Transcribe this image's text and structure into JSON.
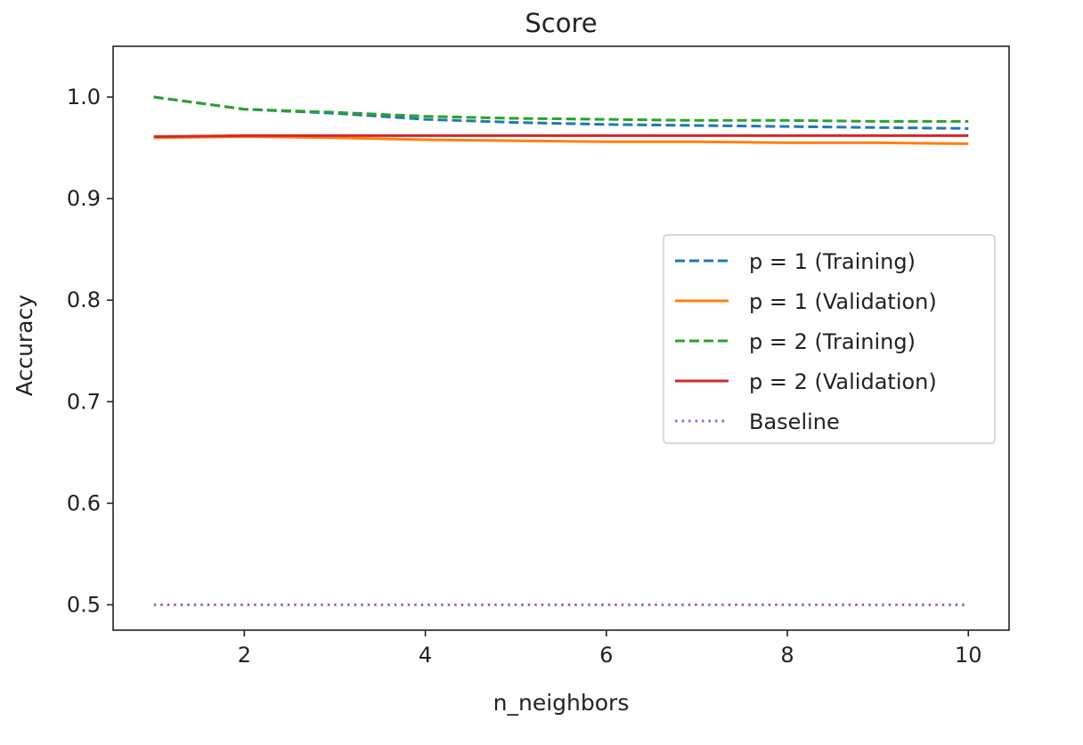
{
  "chart_data": {
    "type": "line",
    "title": "Score",
    "xlabel": "n_neighbors",
    "ylabel": "Accuracy",
    "xlim": [
      0.55,
      10.45
    ],
    "ylim": [
      0.475,
      1.05
    ],
    "xticks": [
      2,
      4,
      6,
      8,
      10
    ],
    "xtick_labels": [
      "2",
      "4",
      "6",
      "8",
      "10"
    ],
    "yticks": [
      0.5,
      0.6,
      0.7,
      0.8,
      0.9,
      1.0
    ],
    "ytick_labels": [
      "0.5",
      "0.6",
      "0.7",
      "0.8",
      "0.9",
      "1.0"
    ],
    "grid": false,
    "legend_position": "center-right",
    "x": [
      1,
      2,
      3,
      4,
      5,
      6,
      7,
      8,
      9,
      10
    ],
    "series": [
      {
        "name": "p = 1 (Training)",
        "values": [
          1.0,
          0.988,
          0.984,
          0.978,
          0.975,
          0.973,
          0.972,
          0.971,
          0.97,
          0.969
        ],
        "color": "#1f77b4",
        "style": "dashed"
      },
      {
        "name": "p = 1 (Validation)",
        "values": [
          0.96,
          0.961,
          0.96,
          0.958,
          0.957,
          0.956,
          0.956,
          0.955,
          0.955,
          0.954
        ],
        "color": "#ff7f0e",
        "style": "solid"
      },
      {
        "name": "p = 2 (Training)",
        "values": [
          1.0,
          0.988,
          0.985,
          0.981,
          0.979,
          0.978,
          0.977,
          0.977,
          0.976,
          0.976
        ],
        "color": "#2ca02c",
        "style": "dashed"
      },
      {
        "name": "p = 2 (Validation)",
        "values": [
          0.961,
          0.962,
          0.962,
          0.962,
          0.962,
          0.962,
          0.962,
          0.962,
          0.962,
          0.962
        ],
        "color": "#d62728",
        "style": "solid"
      },
      {
        "name": "Baseline",
        "values": [
          0.5,
          0.5,
          0.5,
          0.5,
          0.5,
          0.5,
          0.5,
          0.5,
          0.5,
          0.5
        ],
        "color": "#9467bd",
        "style": "dotted"
      }
    ]
  }
}
